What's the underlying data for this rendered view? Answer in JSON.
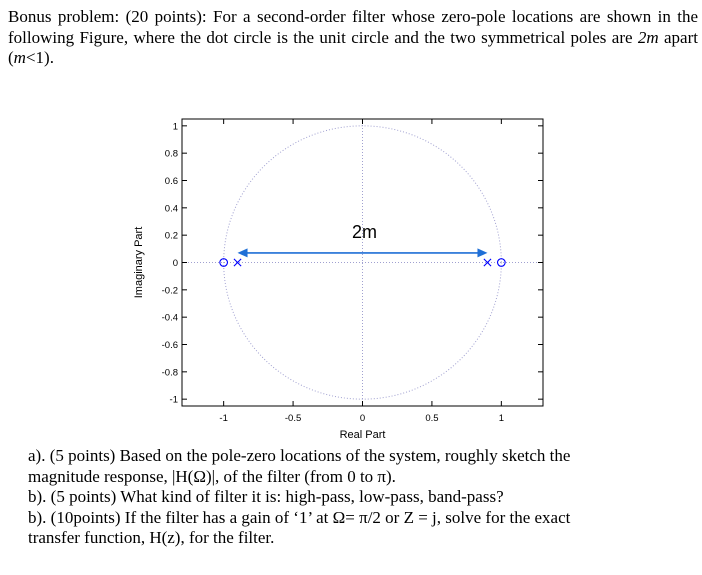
{
  "problem": {
    "intro_a": "Bonus problem: (20 points): For a second-order filter whose zero-pole locations are shown in the following Figure, where the dot circle is the unit circle and the two symmetrical poles are ",
    "intro_m1": "2m",
    "intro_b": " apart (",
    "intro_m2": "m",
    "intro_c": "<1).",
    "questions": [
      "a). (5 points) Based on the pole-zero locations of the system, roughly sketch the magnitude response, |H(Ω)|, of the filter (from 0 to π).",
      "b). (5 points) What kind of filter it is: high-pass, low-pass, band-pass?",
      "b). (10points) If the filter has a gain of ‘1’ at Ω= π/2 or Z = j, solve for the exact transfer function, H(z), for the filter."
    ]
  },
  "chart_data": {
    "type": "scatter",
    "title": "",
    "xlabel": "Real Part",
    "ylabel": "Imaginary Part",
    "xlim": [
      -1.3,
      1.3
    ],
    "ylim": [
      -1.05,
      1.05
    ],
    "x_ticks": [
      -1,
      -0.5,
      0,
      0.5,
      1
    ],
    "x_tick_labels": [
      "-1",
      "-0.5",
      "0",
      "0.5",
      "1"
    ],
    "y_ticks": [
      1,
      0.8,
      0.6,
      0.4,
      0.2,
      0,
      -0.2,
      -0.4,
      -0.6,
      -0.8,
      -1
    ],
    "y_tick_labels": [
      "1",
      "0.8",
      "0.6",
      "0.4",
      "0.2",
      "0",
      "-0.2",
      "-0.4",
      "-0.6",
      "-0.8",
      "-1"
    ],
    "series": [
      {
        "marker": "x",
        "points": [
          [
            -0.9,
            0
          ],
          [
            0.9,
            0
          ]
        ]
      },
      {
        "marker": "o",
        "points": [
          [
            -1.0,
            0
          ],
          [
            1.0,
            0
          ]
        ]
      }
    ],
    "unit_circle": {
      "radius": 1,
      "style": "dotted"
    },
    "annotation": {
      "text": "2m",
      "from": [
        -0.9,
        0.07
      ],
      "to": [
        0.9,
        0.07
      ]
    },
    "grid": false,
    "colors": {
      "marker": "#0000ff",
      "arrow": "#1f6fd6",
      "circle": "#a0a0d0",
      "axis": "#000000"
    }
  }
}
